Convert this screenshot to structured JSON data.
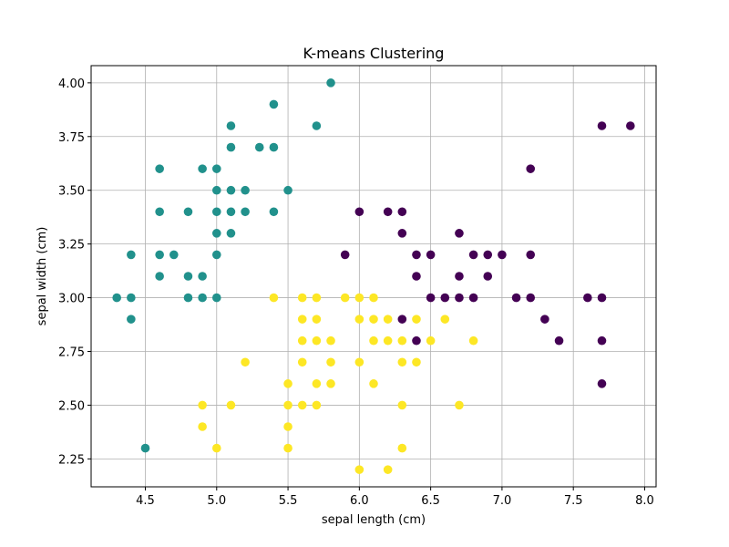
{
  "chart_data": {
    "type": "scatter",
    "title": "K-means Clustering",
    "xlabel": "sepal length (cm)",
    "ylabel": "sepal width (cm)",
    "xlim": [
      4.12,
      8.08
    ],
    "ylim": [
      2.12,
      4.08
    ],
    "xticks": [
      4.5,
      5.0,
      5.5,
      6.0,
      6.5,
      7.0,
      7.5,
      8.0
    ],
    "xtick_labels": [
      "4.5",
      "5.0",
      "5.5",
      "6.0",
      "6.5",
      "7.0",
      "7.5",
      "8.0"
    ],
    "yticks": [
      2.25,
      2.5,
      2.75,
      3.0,
      3.25,
      3.5,
      3.75,
      4.0
    ],
    "ytick_labels": [
      "2.25",
      "2.50",
      "2.75",
      "3.00",
      "3.25",
      "3.50",
      "3.75",
      "4.00"
    ],
    "grid": true,
    "series": [
      {
        "color": "#21918c",
        "points": [
          [
            4.3,
            3.0
          ],
          [
            4.4,
            2.9
          ],
          [
            4.4,
            3.0
          ],
          [
            4.4,
            3.2
          ],
          [
            4.5,
            2.3
          ],
          [
            4.6,
            3.1
          ],
          [
            4.6,
            3.2
          ],
          [
            4.6,
            3.4
          ],
          [
            4.6,
            3.6
          ],
          [
            4.7,
            3.2
          ],
          [
            4.8,
            3.0
          ],
          [
            4.8,
            3.1
          ],
          [
            4.8,
            3.4
          ],
          [
            4.9,
            3.0
          ],
          [
            4.9,
            3.1
          ],
          [
            4.9,
            3.6
          ],
          [
            5.0,
            3.0
          ],
          [
            5.0,
            3.2
          ],
          [
            5.0,
            3.3
          ],
          [
            5.0,
            3.4
          ],
          [
            5.0,
            3.5
          ],
          [
            5.0,
            3.6
          ],
          [
            5.1,
            3.3
          ],
          [
            5.1,
            3.4
          ],
          [
            5.1,
            3.5
          ],
          [
            5.1,
            3.7
          ],
          [
            5.1,
            3.8
          ],
          [
            5.2,
            3.4
          ],
          [
            5.2,
            3.5
          ],
          [
            5.3,
            3.7
          ],
          [
            5.4,
            3.4
          ],
          [
            5.4,
            3.7
          ],
          [
            5.4,
            3.9
          ],
          [
            5.5,
            3.5
          ],
          [
            5.7,
            3.8
          ],
          [
            5.8,
            4.0
          ]
        ]
      },
      {
        "color": "#fde725",
        "points": [
          [
            4.9,
            2.4
          ],
          [
            4.9,
            2.5
          ],
          [
            5.0,
            2.3
          ],
          [
            5.1,
            2.5
          ],
          [
            5.2,
            2.7
          ],
          [
            5.4,
            3.0
          ],
          [
            5.5,
            2.3
          ],
          [
            5.5,
            2.4
          ],
          [
            5.5,
            2.5
          ],
          [
            5.5,
            2.6
          ],
          [
            5.6,
            2.5
          ],
          [
            5.6,
            2.7
          ],
          [
            5.6,
            2.8
          ],
          [
            5.6,
            2.9
          ],
          [
            5.6,
            3.0
          ],
          [
            5.7,
            2.5
          ],
          [
            5.7,
            2.6
          ],
          [
            5.7,
            2.8
          ],
          [
            5.7,
            2.9
          ],
          [
            5.7,
            3.0
          ],
          [
            5.8,
            2.6
          ],
          [
            5.8,
            2.7
          ],
          [
            5.8,
            2.8
          ],
          [
            5.9,
            3.0
          ],
          [
            6.0,
            2.2
          ],
          [
            6.0,
            2.7
          ],
          [
            6.0,
            2.9
          ],
          [
            6.0,
            3.0
          ],
          [
            6.1,
            2.6
          ],
          [
            6.1,
            2.8
          ],
          [
            6.1,
            2.9
          ],
          [
            6.1,
            3.0
          ],
          [
            6.2,
            2.2
          ],
          [
            6.2,
            2.8
          ],
          [
            6.2,
            2.9
          ],
          [
            6.3,
            2.3
          ],
          [
            6.3,
            2.5
          ],
          [
            6.3,
            2.7
          ],
          [
            6.3,
            2.8
          ],
          [
            6.4,
            2.7
          ],
          [
            6.4,
            2.9
          ],
          [
            6.5,
            2.8
          ],
          [
            6.6,
            2.9
          ],
          [
            6.7,
            2.5
          ],
          [
            6.8,
            2.8
          ]
        ]
      },
      {
        "color": "#440154",
        "points": [
          [
            5.9,
            3.2
          ],
          [
            6.0,
            3.4
          ],
          [
            6.2,
            3.4
          ],
          [
            6.3,
            2.9
          ],
          [
            6.3,
            3.3
          ],
          [
            6.3,
            3.4
          ],
          [
            6.4,
            2.8
          ],
          [
            6.4,
            3.1
          ],
          [
            6.4,
            3.2
          ],
          [
            6.5,
            3.0
          ],
          [
            6.5,
            3.2
          ],
          [
            6.6,
            3.0
          ],
          [
            6.7,
            3.0
          ],
          [
            6.7,
            3.1
          ],
          [
            6.7,
            3.3
          ],
          [
            6.8,
            3.0
          ],
          [
            6.8,
            3.2
          ],
          [
            6.9,
            3.1
          ],
          [
            6.9,
            3.2
          ],
          [
            7.0,
            3.2
          ],
          [
            7.1,
            3.0
          ],
          [
            7.2,
            3.0
          ],
          [
            7.2,
            3.2
          ],
          [
            7.2,
            3.6
          ],
          [
            7.3,
            2.9
          ],
          [
            7.4,
            2.8
          ],
          [
            7.6,
            3.0
          ],
          [
            7.7,
            2.6
          ],
          [
            7.7,
            2.8
          ],
          [
            7.7,
            3.0
          ],
          [
            7.7,
            3.8
          ],
          [
            7.9,
            3.8
          ]
        ]
      }
    ]
  }
}
